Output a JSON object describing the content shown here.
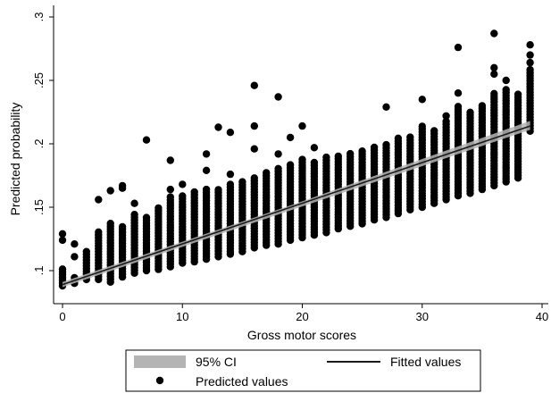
{
  "chart_data": {
    "type": "scatter",
    "xlabel": "Gross motor scores",
    "ylabel": "Predicted probability",
    "xlim": [
      0,
      40
    ],
    "ylim": [
      0.085,
      0.3
    ],
    "xticks": [
      0,
      10,
      20,
      30,
      40
    ],
    "xtick_labels": [
      "0",
      "10",
      "20",
      "30",
      "40"
    ],
    "yticks": [
      0.1,
      0.15,
      0.2,
      0.25,
      0.3
    ],
    "ytick_labels": [
      ".1",
      ".15",
      ".2",
      ".25",
      ".3"
    ],
    "grid": false,
    "legend_position": "bottom",
    "legend": [
      {
        "label": "95% CI",
        "kind": "band",
        "color": "#b4b4b4"
      },
      {
        "label": "Fitted values",
        "kind": "line",
        "color": "#1a1a1a"
      },
      {
        "label": "Predicted values",
        "kind": "point",
        "color": "#000000"
      }
    ],
    "series": [
      {
        "name": "Predicted values",
        "kind": "scatter",
        "color": "#000000",
        "columns": [
          {
            "x": 0,
            "ymin": 0.088,
            "ymax": 0.103,
            "extra": [
              0.124,
              0.129
            ]
          },
          {
            "x": 1,
            "ymin": 0.09,
            "ymax": 0.096,
            "extra": [
              0.111,
              0.121
            ]
          },
          {
            "x": 2,
            "ymin": 0.093,
            "ymax": 0.117,
            "extra": []
          },
          {
            "x": 3,
            "ymin": 0.093,
            "ymax": 0.131,
            "extra": [
              0.156
            ]
          },
          {
            "x": 4,
            "ymin": 0.091,
            "ymax": 0.139,
            "extra": [
              0.163
            ]
          },
          {
            "x": 5,
            "ymin": 0.095,
            "ymax": 0.136,
            "extra": [
              0.165,
              0.167
            ]
          },
          {
            "x": 6,
            "ymin": 0.098,
            "ymax": 0.146,
            "extra": [
              0.153
            ]
          },
          {
            "x": 7,
            "ymin": 0.1,
            "ymax": 0.143,
            "extra": [
              0.203
            ]
          },
          {
            "x": 8,
            "ymin": 0.101,
            "ymax": 0.151,
            "extra": []
          },
          {
            "x": 9,
            "ymin": 0.103,
            "ymax": 0.158,
            "extra": [
              0.164,
              0.187
            ]
          },
          {
            "x": 10,
            "ymin": 0.106,
            "ymax": 0.16,
            "extra": [
              0.168
            ]
          },
          {
            "x": 11,
            "ymin": 0.107,
            "ymax": 0.162,
            "extra": []
          },
          {
            "x": 12,
            "ymin": 0.109,
            "ymax": 0.166,
            "extra": [
              0.179,
              0.192
            ]
          },
          {
            "x": 13,
            "ymin": 0.111,
            "ymax": 0.165,
            "extra": [
              0.213
            ]
          },
          {
            "x": 14,
            "ymin": 0.113,
            "ymax": 0.17,
            "extra": [
              0.176,
              0.209
            ]
          },
          {
            "x": 15,
            "ymin": 0.115,
            "ymax": 0.171,
            "extra": []
          },
          {
            "x": 16,
            "ymin": 0.118,
            "ymax": 0.173,
            "extra": [
              0.196,
              0.214,
              0.246
            ]
          },
          {
            "x": 17,
            "ymin": 0.12,
            "ymax": 0.178,
            "extra": []
          },
          {
            "x": 18,
            "ymin": 0.121,
            "ymax": 0.182,
            "extra": [
              0.192,
              0.237
            ]
          },
          {
            "x": 19,
            "ymin": 0.124,
            "ymax": 0.185,
            "extra": [
              0.205
            ]
          },
          {
            "x": 20,
            "ymin": 0.126,
            "ymax": 0.188,
            "extra": [
              0.214
            ]
          },
          {
            "x": 21,
            "ymin": 0.128,
            "ymax": 0.186,
            "extra": [
              0.197
            ]
          },
          {
            "x": 22,
            "ymin": 0.13,
            "ymax": 0.19,
            "extra": []
          },
          {
            "x": 23,
            "ymin": 0.133,
            "ymax": 0.192,
            "extra": []
          },
          {
            "x": 24,
            "ymin": 0.135,
            "ymax": 0.194,
            "extra": []
          },
          {
            "x": 25,
            "ymin": 0.137,
            "ymax": 0.196,
            "extra": []
          },
          {
            "x": 26,
            "ymin": 0.14,
            "ymax": 0.199,
            "extra": []
          },
          {
            "x": 27,
            "ymin": 0.142,
            "ymax": 0.201,
            "extra": [
              0.229
            ]
          },
          {
            "x": 28,
            "ymin": 0.145,
            "ymax": 0.205,
            "extra": []
          },
          {
            "x": 29,
            "ymin": 0.148,
            "ymax": 0.207,
            "extra": []
          },
          {
            "x": 30,
            "ymin": 0.15,
            "ymax": 0.215,
            "extra": [
              0.235
            ]
          },
          {
            "x": 31,
            "ymin": 0.153,
            "ymax": 0.212,
            "extra": []
          },
          {
            "x": 32,
            "ymin": 0.156,
            "ymax": 0.218,
            "extra": [
              0.222
            ]
          },
          {
            "x": 33,
            "ymin": 0.159,
            "ymax": 0.23,
            "extra": [
              0.24,
              0.276
            ]
          },
          {
            "x": 34,
            "ymin": 0.161,
            "ymax": 0.225,
            "extra": []
          },
          {
            "x": 35,
            "ymin": 0.164,
            "ymax": 0.232,
            "extra": []
          },
          {
            "x": 36,
            "ymin": 0.167,
            "ymax": 0.24,
            "extra": [
              0.255,
              0.26,
              0.287
            ]
          },
          {
            "x": 37,
            "ymin": 0.17,
            "ymax": 0.243,
            "extra": [
              0.25
            ]
          },
          {
            "x": 38,
            "ymin": 0.173,
            "ymax": 0.239,
            "extra": []
          },
          {
            "x": 39,
            "ymin": 0.21,
            "ymax": 0.26,
            "extra": [
              0.264,
              0.27,
              0.278
            ]
          }
        ]
      },
      {
        "name": "Fitted values",
        "kind": "line",
        "color": "#1a1a1a",
        "x": [
          0,
          39
        ],
        "y": [
          0.089,
          0.214
        ]
      },
      {
        "name": "95% CI",
        "kind": "band",
        "color": "#b4b4b4",
        "x": [
          0,
          19.5,
          39
        ],
        "lower": [
          0.087,
          0.149,
          0.211
        ],
        "upper": [
          0.091,
          0.153,
          0.218
        ]
      }
    ]
  }
}
